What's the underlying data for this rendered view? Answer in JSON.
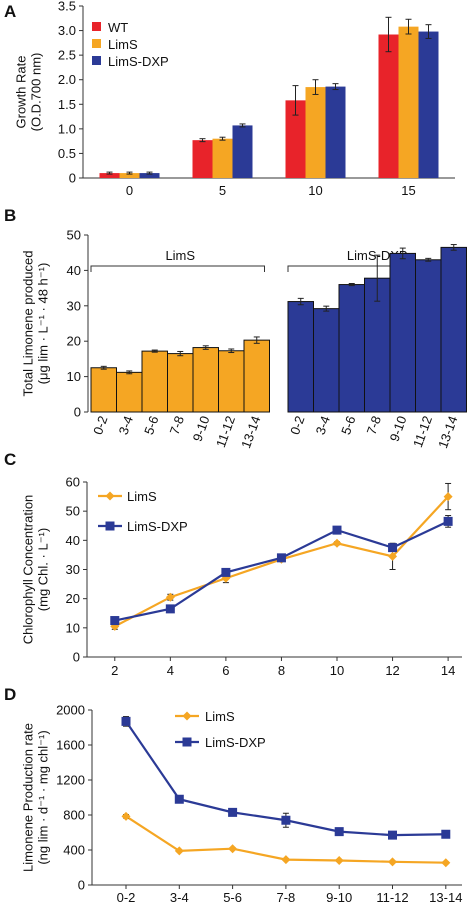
{
  "chart_data": [
    {
      "panel": "A",
      "type": "bar",
      "ylabel": "Growth Rate",
      "ylabel2": "(O.D.700 nm)",
      "ylim": [
        0,
        3.5
      ],
      "yticks": [
        "0",
        "0.5",
        "1.0",
        "1.5",
        "2.0",
        "2.5",
        "3.0",
        "3.5"
      ],
      "categories": [
        "0",
        "5",
        "10",
        "15"
      ],
      "legend_position": "top-left",
      "series": [
        {
          "name": "WT",
          "color": "#e8232a",
          "values": [
            0.1,
            0.77,
            1.58,
            2.92
          ],
          "errors": [
            0.02,
            0.03,
            0.3,
            0.35
          ]
        },
        {
          "name": "LimS",
          "color": "#f5a623",
          "values": [
            0.1,
            0.8,
            1.85,
            3.08
          ],
          "errors": [
            0.02,
            0.03,
            0.15,
            0.15
          ]
        },
        {
          "name": "LimS-DXP",
          "color": "#2b3a96",
          "values": [
            0.1,
            1.07,
            1.86,
            2.98
          ],
          "errors": [
            0.02,
            0.03,
            0.06,
            0.14
          ]
        }
      ]
    },
    {
      "panel": "B",
      "type": "bar",
      "ylabel": "Total Limonene produced",
      "ylabel2": "(μg lim · L⁻¹ · 48 h⁻¹)",
      "ylim": [
        0,
        50
      ],
      "yticks": [
        "0",
        "10",
        "20",
        "30",
        "40",
        "50"
      ],
      "categories": [
        "0-2",
        "3-4",
        "5-6",
        "7-8",
        "9-10",
        "11-12",
        "13-14"
      ],
      "groups": [
        {
          "name": "LimS",
          "color": "#f5a623",
          "values": [
            12.5,
            11.2,
            17.2,
            16.5,
            18.2,
            17.3,
            20.3
          ],
          "errors": [
            0.4,
            0.4,
            0.3,
            0.6,
            0.5,
            0.5,
            0.9
          ]
        },
        {
          "name": "LimS-DXP",
          "color": "#2b3a96",
          "values": [
            31.2,
            29.2,
            36.0,
            37.8,
            44.8,
            43.0,
            46.5
          ],
          "errors": [
            0.9,
            0.7,
            0.3,
            6.5,
            1.5,
            0.4,
            0.8
          ]
        }
      ]
    },
    {
      "panel": "C",
      "type": "line",
      "ylabel": "Chlorophyll Concentration",
      "ylabel2": "(mg Chl. · L⁻¹)",
      "ylim": [
        0,
        60
      ],
      "yticks": [
        "0",
        "10",
        "20",
        "30",
        "40",
        "50",
        "60"
      ],
      "x": [
        2,
        4,
        6,
        8,
        10,
        12,
        14
      ],
      "xlim": [
        1,
        14.5
      ],
      "legend_position": "top-left",
      "series": [
        {
          "name": "LimS",
          "color": "#f5a623",
          "marker": "diamond",
          "values": [
            10.5,
            20.5,
            27.0,
            33.5,
            39.0,
            34.5,
            55.0
          ],
          "errors": [
            1.0,
            1.0,
            1.5,
            0.5,
            0.5,
            4.5,
            4.5
          ]
        },
        {
          "name": "LimS-DXP",
          "color": "#2b3a96",
          "marker": "square",
          "values": [
            12.5,
            16.5,
            29.0,
            34.0,
            43.5,
            37.5,
            46.5
          ],
          "errors": [
            0.5,
            0.5,
            1.0,
            0.5,
            0.5,
            1.0,
            2.0
          ]
        }
      ]
    },
    {
      "panel": "D",
      "type": "line",
      "ylabel": "Limonene Production rate",
      "ylabel2": "(ng lim · d⁻¹ · mg chl⁻¹)",
      "ylim": [
        0,
        2000
      ],
      "yticks": [
        "0",
        "400",
        "800",
        "1200",
        "1600",
        "2000"
      ],
      "categories": [
        "0-2",
        "3-4",
        "5-6",
        "7-8",
        "9-10",
        "11-12",
        "13-14"
      ],
      "legend_position": "top-center",
      "series": [
        {
          "name": "LimS",
          "color": "#f5a623",
          "marker": "diamond",
          "values": [
            785,
            390,
            415,
            290,
            280,
            265,
            255
          ],
          "errors": [
            20,
            10,
            10,
            10,
            10,
            10,
            10
          ]
        },
        {
          "name": "LimS-DXP",
          "color": "#2b3a96",
          "marker": "square",
          "values": [
            1870,
            980,
            830,
            740,
            610,
            570,
            580
          ],
          "errors": [
            55,
            15,
            15,
            80,
            15,
            10,
            10
          ]
        }
      ]
    }
  ],
  "panel_labels": [
    "A",
    "B",
    "C",
    "D"
  ]
}
